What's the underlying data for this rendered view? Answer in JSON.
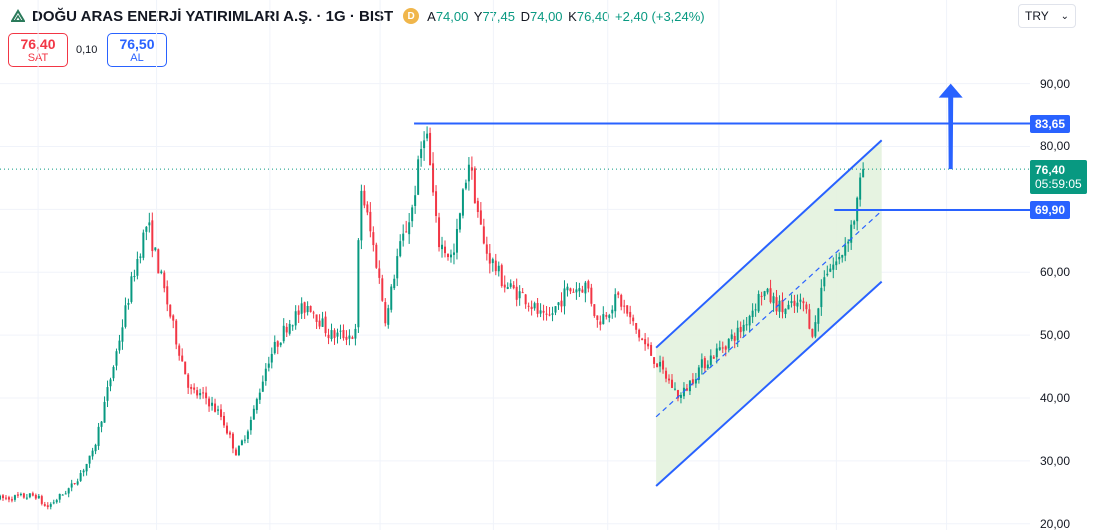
{
  "header": {
    "title": "DOĞU ARAS ENERJİ YATIRIMLARI A.Ş. · 1G · BIST",
    "source_badge": "D",
    "ohlc": [
      {
        "k": "A",
        "v": "74,00"
      },
      {
        "k": "Y",
        "v": "77,45"
      },
      {
        "k": "D",
        "v": "74,00"
      },
      {
        "k": "K",
        "v": "76,40"
      }
    ],
    "change": "+2,40 (+3,24%)"
  },
  "currency": {
    "label": "TRY"
  },
  "trade": {
    "sell_price": "76,40",
    "sell_label": "SAT",
    "spread": "0,10",
    "buy_price": "76,50",
    "buy_label": "AL"
  },
  "colors": {
    "up": "#089981",
    "down": "#f23645",
    "drawing": "#2962ff",
    "channel_fill": "#e3f2de"
  },
  "chart_data": {
    "type": "candlestick",
    "y_ticks": [
      "90,00",
      "80,00",
      "70,00",
      "60,00",
      "50,00",
      "40,00",
      "30,00",
      "20,00"
    ],
    "y_tick_values": [
      90,
      80,
      70,
      60,
      50,
      40,
      30,
      20
    ],
    "ylim": [
      19,
      103.3
    ],
    "current_price": {
      "value": 76.4,
      "label": "76,40",
      "countdown": "05:59:05"
    },
    "levels": [
      {
        "value": 83.65,
        "label": "83,65"
      },
      {
        "value": 69.9,
        "label": "69,90"
      }
    ],
    "price_path": [
      {
        "t": 0,
        "p": 24
      },
      {
        "t": 0.035,
        "p": 24.5
      },
      {
        "t": 0.045,
        "p": 22.5
      },
      {
        "t": 0.07,
        "p": 26
      },
      {
        "t": 0.09,
        "p": 31
      },
      {
        "t": 0.11,
        "p": 45
      },
      {
        "t": 0.13,
        "p": 60
      },
      {
        "t": 0.143,
        "p": 68
      },
      {
        "t": 0.155,
        "p": 60
      },
      {
        "t": 0.17,
        "p": 50
      },
      {
        "t": 0.185,
        "p": 41
      },
      {
        "t": 0.2,
        "p": 40
      },
      {
        "t": 0.215,
        "p": 37
      },
      {
        "t": 0.23,
        "p": 31
      },
      {
        "t": 0.245,
        "p": 37
      },
      {
        "t": 0.26,
        "p": 46
      },
      {
        "t": 0.28,
        "p": 52
      },
      {
        "t": 0.3,
        "p": 55
      },
      {
        "t": 0.32,
        "p": 50
      },
      {
        "t": 0.345,
        "p": 50
      },
      {
        "t": 0.35,
        "p": 74
      },
      {
        "t": 0.365,
        "p": 62
      },
      {
        "t": 0.375,
        "p": 52
      },
      {
        "t": 0.385,
        "p": 62
      },
      {
        "t": 0.4,
        "p": 70
      },
      {
        "t": 0.413,
        "p": 84
      },
      {
        "t": 0.425,
        "p": 65
      },
      {
        "t": 0.44,
        "p": 62
      },
      {
        "t": 0.455,
        "p": 78
      },
      {
        "t": 0.47,
        "p": 64
      },
      {
        "t": 0.49,
        "p": 58
      },
      {
        "t": 0.51,
        "p": 56
      },
      {
        "t": 0.53,
        "p": 52
      },
      {
        "t": 0.55,
        "p": 57
      },
      {
        "t": 0.57,
        "p": 58
      },
      {
        "t": 0.58,
        "p": 52
      },
      {
        "t": 0.6,
        "p": 56
      },
      {
        "t": 0.62,
        "p": 50
      },
      {
        "t": 0.64,
        "p": 45
      },
      {
        "t": 0.66,
        "p": 40
      },
      {
        "t": 0.68,
        "p": 45
      },
      {
        "t": 0.7,
        "p": 48
      },
      {
        "t": 0.72,
        "p": 51
      },
      {
        "t": 0.74,
        "p": 57
      },
      {
        "t": 0.76,
        "p": 54
      },
      {
        "t": 0.78,
        "p": 55
      },
      {
        "t": 0.79,
        "p": 50
      },
      {
        "t": 0.8,
        "p": 60
      },
      {
        "t": 0.815,
        "p": 62
      },
      {
        "t": 0.83,
        "p": 69
      },
      {
        "t": 0.838,
        "p": 76.4
      }
    ],
    "channel": {
      "upper_start": {
        "t": 0.637,
        "p": 48
      },
      "upper_end": {
        "t": 0.856,
        "p": 81
      },
      "lower_start": {
        "t": 0.637,
        "p": 26
      },
      "lower_end": {
        "t": 0.856,
        "p": 58.5
      },
      "mid_start": {
        "t": 0.637,
        "p": 37
      },
      "mid_end": {
        "t": 0.856,
        "p": 69.75
      }
    },
    "arrow": {
      "t": 0.923,
      "from": 76.4,
      "to": 90
    },
    "grid_lines_x": [
      0.037,
      0.152,
      0.262,
      0.369,
      0.479,
      0.59,
      0.698,
      0.812,
      0.919
    ]
  }
}
